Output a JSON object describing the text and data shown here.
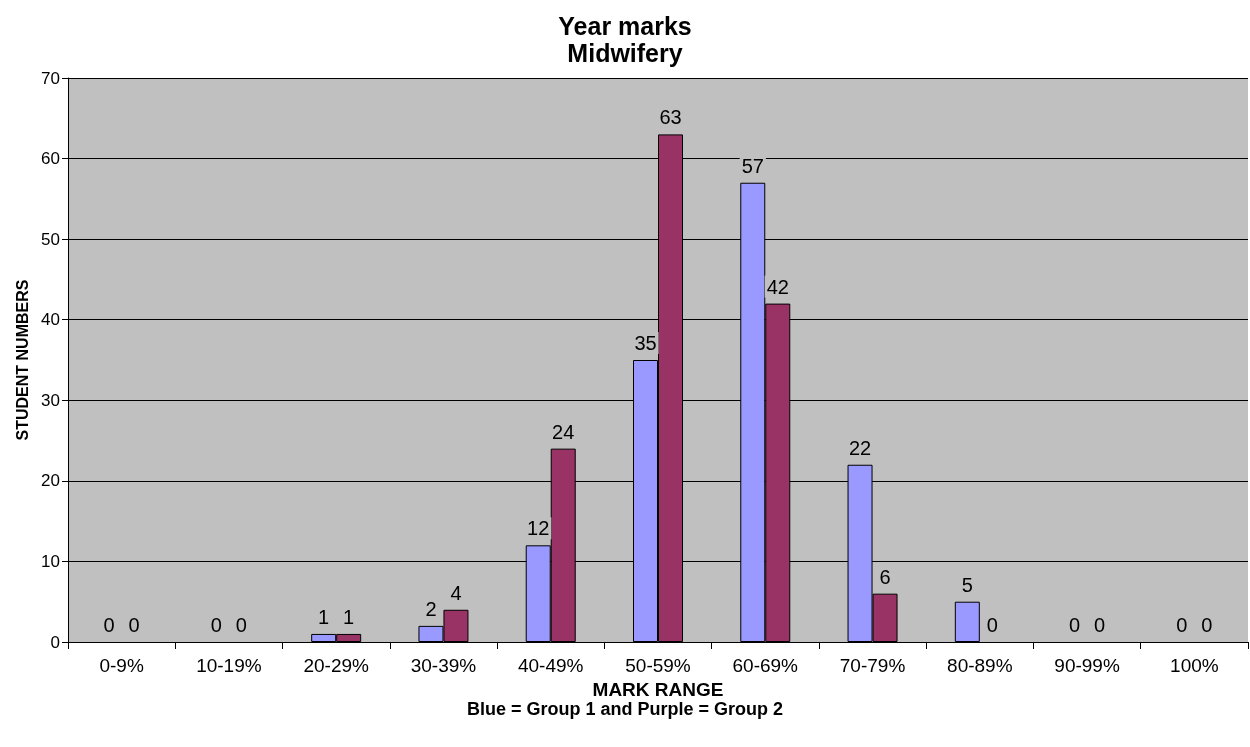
{
  "chart_data": {
    "type": "bar",
    "title": "Year marks",
    "subtitle": "Midwifery",
    "xlabel": "MARK RANGE",
    "ylabel": "STUDENT NUMBERS",
    "annotations": [
      "Blue = Group 1 and Purple = Group 2"
    ],
    "categories": [
      "0-9%",
      "10-19%",
      "20-29%",
      "30-39%",
      "40-49%",
      "50-59%",
      "60-69%",
      "70-79%",
      "80-89%",
      "90-99%",
      "100%"
    ],
    "series": [
      {
        "color": "#9999ff",
        "values": [
          0,
          0,
          1,
          2,
          12,
          35,
          57,
          22,
          5,
          0,
          0
        ]
      },
      {
        "color": "#993366",
        "values": [
          0,
          0,
          1,
          4,
          24,
          63,
          42,
          6,
          0,
          0,
          0
        ]
      }
    ],
    "ylim": [
      0,
      70
    ],
    "yticks": [
      0,
      10,
      20,
      30,
      40,
      50,
      60,
      70
    ],
    "grid": "y",
    "data_labels": true
  }
}
